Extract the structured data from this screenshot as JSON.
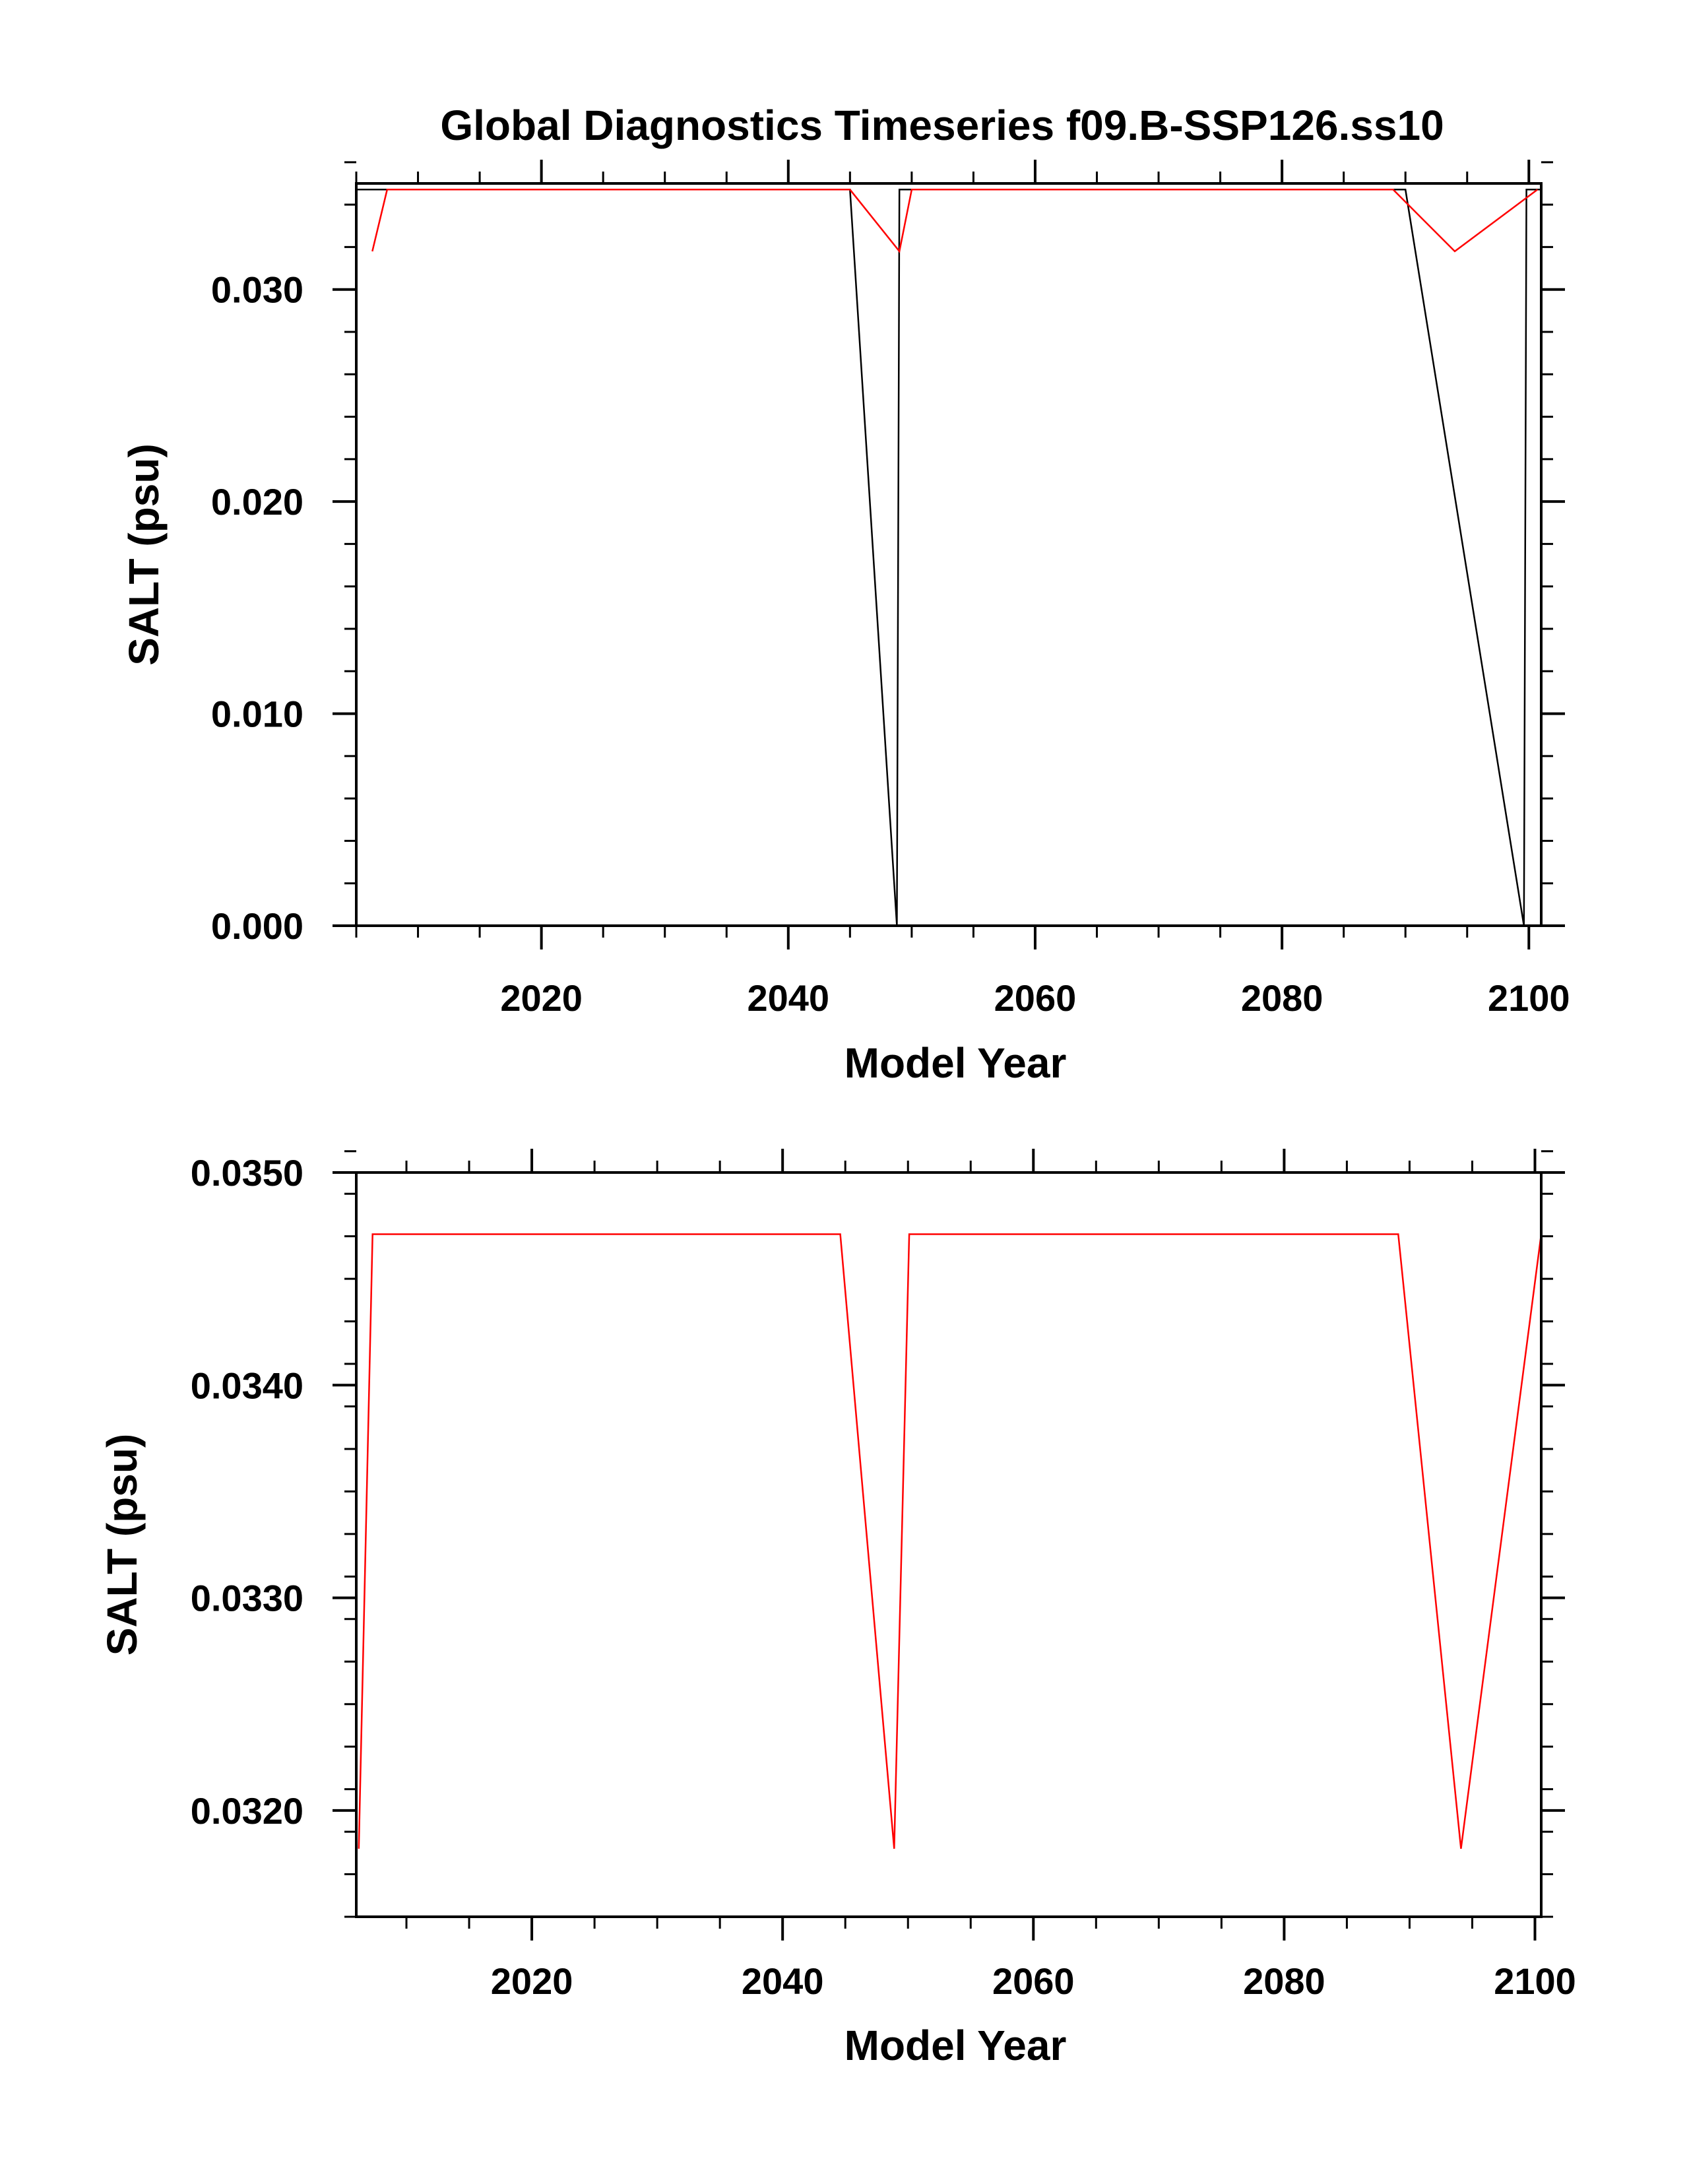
{
  "figure": {
    "title": "Global Diagnostics Timeseries f09.B-SSP126.ss10",
    "line_colors": {
      "black_series": "#000000",
      "red_series": "#ff0000"
    }
  },
  "chart_data": [
    {
      "type": "line",
      "xlabel": "Model Year",
      "ylabel": "SALT (psu)",
      "xlim": [
        2005,
        2101
      ],
      "ylim": [
        0.0,
        0.035
      ],
      "xticks": [
        2020,
        2040,
        2060,
        2080,
        2100
      ],
      "xtick_labels": [
        "2020",
        "2040",
        "2060",
        "2080",
        "2100"
      ],
      "xminor_step": 5,
      "yticks": [
        0.0,
        0.01,
        0.02,
        0.03
      ],
      "ytick_labels": [
        "0.000",
        "0.010",
        "0.020",
        "0.030"
      ],
      "yminor_step": 0.002,
      "series": [
        {
          "name": "black",
          "color": "#000000",
          "x": [
            2005,
            2045,
            2048.8,
            2049,
            2090,
            2099.6,
            2099.8,
            2101
          ],
          "y": [
            0.03471,
            0.03471,
            0.0,
            0.03471,
            0.03471,
            0.0,
            0.03471,
            0.03471
          ]
        },
        {
          "name": "red",
          "color": "#ff0000",
          "x": [
            2006.3,
            2007.5,
            2045,
            2049,
            2050,
            2089,
            2094,
            2100.7
          ],
          "y": [
            0.0318,
            0.03471,
            0.03471,
            0.0318,
            0.03471,
            0.03471,
            0.0318,
            0.03471
          ]
        }
      ]
    },
    {
      "type": "line",
      "xlabel": "Model Year",
      "ylabel": "SALT (psu)",
      "xlim": [
        2006,
        2100.5
      ],
      "ylim": [
        0.0315,
        0.035
      ],
      "xticks": [
        2020,
        2040,
        2060,
        2080,
        2100
      ],
      "xtick_labels": [
        "2020",
        "2040",
        "2060",
        "2080",
        "2100"
      ],
      "xminor_step": 5,
      "yticks": [
        0.032,
        0.033,
        0.034,
        0.035
      ],
      "ytick_labels": [
        "0.0320",
        "0.0330",
        "0.0340",
        "0.0350"
      ],
      "yminor_step": 0.0002,
      "series": [
        {
          "name": "red",
          "color": "#ff0000",
          "x": [
            2006.2,
            2007.3,
            2044.6,
            2048.9,
            2050.1,
            2089.1,
            2094.1,
            2100.5
          ],
          "y": [
            0.03182,
            0.03471,
            0.03471,
            0.03182,
            0.03471,
            0.03471,
            0.03182,
            0.03471
          ]
        }
      ]
    }
  ]
}
